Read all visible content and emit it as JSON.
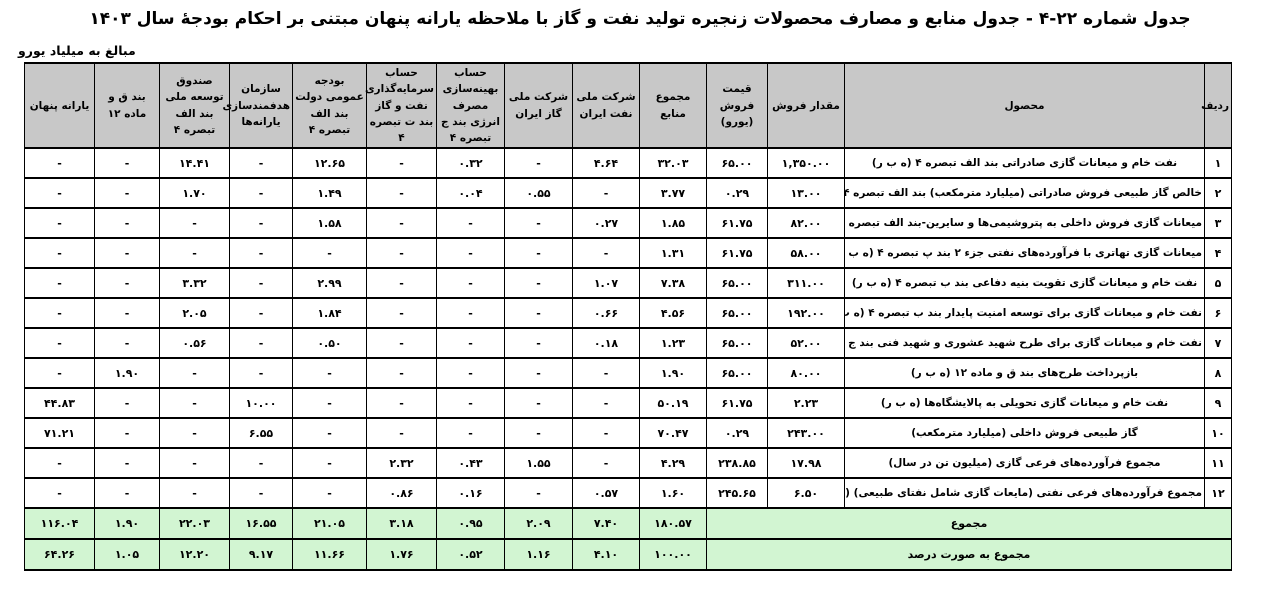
{
  "title": "جدول شماره ۲۲-۴ - جدول منابع و مصارف محصولات زنجیره تولید نفت و گاز با ملاحظه یارانه پنهان مبتنی بر احکام بودجهٔ سال ۱۴۰۳",
  "note": "مبالغ به میلیاد یورو",
  "colors": {
    "header_bg": "#c8c8c8",
    "footer_bg": "#d2f5d2",
    "border": "#000000",
    "page_bg": "#ffffff"
  },
  "table": {
    "columns": [
      "ردیف",
      "محصول",
      "مقدار فروش",
      "قیمت فروش (یورو)",
      "مجموع منابع",
      "شرکت ملی نفت ایران",
      "شرکت ملی گاز ایران",
      "حساب بهینه‌سازی مصرف انرژی بند ج تبصره ۴",
      "حساب سرمایه‌گذاری نفت و گاز بند ت تبصره ۴",
      "بودجه عمومی دولت بند الف تبصره ۴",
      "سازمان هدفمندسازی یارانه‌ها",
      "صندوق توسعه ملی بند الف تبصره ۴",
      "بند ق و ماده ۱۲",
      "یارانه پنهان"
    ],
    "rows": [
      {
        "no": "۱",
        "product": "نفت خام و میعانات گازی صادراتی بند الف تبصره ۴  (ه ب ر)",
        "values": [
          "۱,۳۵۰.۰۰",
          "۶۵.۰۰",
          "۳۲.۰۳",
          "۴.۶۴",
          "-",
          "۰.۳۲",
          "-",
          "۱۲.۶۵",
          "-",
          "۱۴.۴۱",
          "-",
          "-"
        ]
      },
      {
        "no": "۲",
        "product": "خالص گاز طبیعی فروش صادراتی (میلیارد مترمکعب) بند الف تبصره ۴",
        "values": [
          "۱۳.۰۰",
          "۰.۲۹",
          "۳.۷۷",
          "-",
          "۰.۵۵",
          "۰.۰۴",
          "-",
          "۱.۴۹",
          "-",
          "۱.۷۰",
          "-",
          "-"
        ]
      },
      {
        "no": "۳",
        "product": "میعانات گازی فروش داخلی به پتروشیمی‌ها و سایرین-بند الف تبصره ۴  (ه ب ر)",
        "values": [
          "۸۲.۰۰",
          "۶۱.۷۵",
          "۱.۸۵",
          "۰.۲۷",
          "-",
          "-",
          "-",
          "۱.۵۸",
          "-",
          "-",
          "-",
          "-"
        ]
      },
      {
        "no": "۴",
        "product": "میعانات گازی تهاتری با فرآورده‌های نفتی جزء ۲ بند پ تبصره ۴ (ه ب ر)",
        "values": [
          "۵۸.۰۰",
          "۶۱.۷۵",
          "۱.۳۱",
          "-",
          "-",
          "-",
          "-",
          "-",
          "-",
          "-",
          "-",
          "-"
        ]
      },
      {
        "no": "۵",
        "product": "نفت خام و میعانات گازی تقویت بنیه دفاعی بند ب تبصره ۴ (ه ب ر)",
        "values": [
          "۳۱۱.۰۰",
          "۶۵.۰۰",
          "۷.۳۸",
          "۱.۰۷",
          "-",
          "-",
          "-",
          "۲.۹۹",
          "-",
          "۳.۳۲",
          "-",
          "-"
        ]
      },
      {
        "no": "۶",
        "product": "نفت خام و میعانات گازی برای توسعه امنیت پایدار بند ب تبصره ۴ (ه ب ر)",
        "values": [
          "۱۹۲.۰۰",
          "۶۵.۰۰",
          "۴.۵۶",
          "۰.۶۶",
          "-",
          "-",
          "-",
          "۱.۸۴",
          "-",
          "۲.۰۵",
          "-",
          "-"
        ]
      },
      {
        "no": "۷",
        "product": "نفت خام و میعانات گازی برای طرح شهید عشوری و شهید فنی بند ج تبصره ۱۴ (ه ب ر)",
        "values": [
          "۵۲.۰۰",
          "۶۵.۰۰",
          "۱.۲۳",
          "۰.۱۸",
          "-",
          "-",
          "-",
          "۰.۵۰",
          "-",
          "۰.۵۶",
          "-",
          "-"
        ]
      },
      {
        "no": "۸",
        "product": "بازپرداخت طرح‌های بند ق و ماده ۱۲  (ه ب ر)",
        "values": [
          "۸۰.۰۰",
          "۶۵.۰۰",
          "۱.۹۰",
          "-",
          "-",
          "-",
          "-",
          "-",
          "-",
          "-",
          "۱.۹۰",
          "-"
        ]
      },
      {
        "no": "۹",
        "product": "نفت خام و میعانات گازی تحویلی به پالایشگاه‌ها (ه ب ر)",
        "values": [
          "۲.۲۳",
          "۶۱.۷۵",
          "۵۰.۱۹",
          "-",
          "-",
          "-",
          "-",
          "-",
          "۱۰.۰۰",
          "-",
          "-",
          "۴۴.۸۳"
        ]
      },
      {
        "no": "۱۰",
        "product": "گاز طبیعی فروش داخلی (میلیارد مترمکعب)",
        "values": [
          "۲۴۳.۰۰",
          "۰.۲۹",
          "۷۰.۴۷",
          "-",
          "-",
          "-",
          "-",
          "-",
          "۶.۵۵",
          "-",
          "-",
          "۷۱.۲۱"
        ]
      },
      {
        "no": "۱۱",
        "product": "مجموع فرآورده‌های فرعی گازی (میلیون تن در سال)",
        "values": [
          "۱۷.۹۸",
          "۲۳۸.۸۵",
          "۴.۲۹",
          "-",
          "۱.۵۵",
          "۰.۴۳",
          "۲.۳۲",
          "-",
          "-",
          "-",
          "-",
          "-"
        ]
      },
      {
        "no": "۱۲",
        "product": "مجموع فرآورده‌های فرعی نفتی (مایعات گازی شامل نفتای طبیعی) (میلیون تن در سال)",
        "values": [
          "۶.۵۰",
          "۲۴۵.۶۵",
          "۱.۶۰",
          "۰.۵۷",
          "-",
          "۰.۱۶",
          "۰.۸۶",
          "-",
          "-",
          "-",
          "-",
          "-"
        ]
      }
    ],
    "footer": [
      {
        "label": "مجموع",
        "values": [
          "۱۸۰.۵۷",
          "۷.۴۰",
          "۲.۰۹",
          "۰.۹۵",
          "۳.۱۸",
          "۲۱.۰۵",
          "۱۶.۵۵",
          "۲۲.۰۳",
          "۱.۹۰",
          "۱۱۶.۰۴"
        ]
      },
      {
        "label": "مجموع به صورت درصد",
        "values": [
          "۱۰۰.۰۰",
          "۴.۱۰",
          "۱.۱۶",
          "۰.۵۲",
          "۱.۷۶",
          "۱۱.۶۶",
          "۹.۱۷",
          "۱۲.۲۰",
          "۱.۰۵",
          "۶۴.۲۶"
        ]
      }
    ]
  }
}
